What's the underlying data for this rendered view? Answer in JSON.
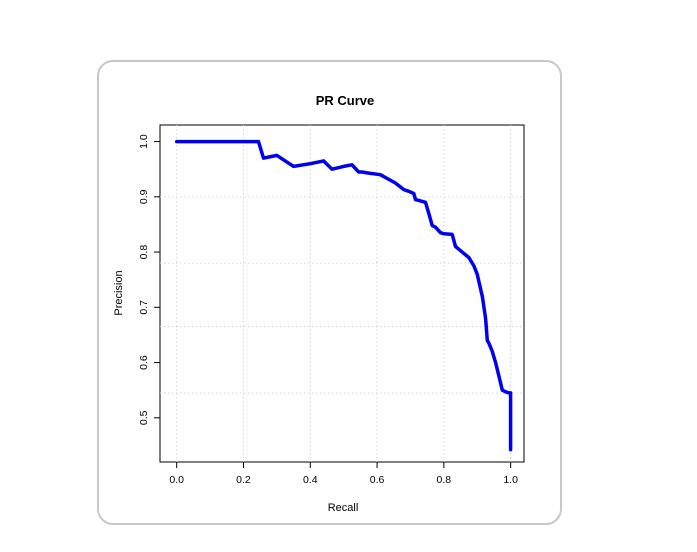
{
  "chart_data": {
    "type": "line",
    "title": "PR Curve",
    "xlabel": "Recall",
    "ylabel": "Precision",
    "xlim": [
      -0.05,
      1.04
    ],
    "ylim": [
      0.42,
      1.03
    ],
    "xticks": [
      0.0,
      0.2,
      0.4,
      0.6,
      0.8,
      1.0
    ],
    "xtick_labels": [
      "0.0",
      "0.2",
      "0.4",
      "0.6",
      "0.8",
      "1.0"
    ],
    "yticks": [
      0.5,
      0.6,
      0.7,
      0.8,
      0.9,
      1.0
    ],
    "ytick_labels": [
      "0.5",
      "0.6",
      "0.7",
      "0.8",
      "0.9",
      "1.0"
    ],
    "grid_x": [
      0.0,
      0.2,
      0.4,
      0.6,
      0.8,
      1.0
    ],
    "grid_y": [
      0.545,
      0.665,
      0.78,
      0.9
    ],
    "grid": true,
    "series": [
      {
        "color": "#0000ee",
        "x": [
          0.0,
          0.245,
          0.26,
          0.3,
          0.35,
          0.4,
          0.44,
          0.465,
          0.5,
          0.525,
          0.545,
          0.555,
          0.575,
          0.61,
          0.625,
          0.655,
          0.68,
          0.695,
          0.71,
          0.715,
          0.745,
          0.755,
          0.765,
          0.775,
          0.79,
          0.8,
          0.825,
          0.835,
          0.845,
          0.875,
          0.89,
          0.9,
          0.915,
          0.925,
          0.93,
          0.935,
          0.945,
          0.955,
          0.965,
          0.975,
          0.985,
          0.995,
          1.0,
          1.0
        ],
        "y": [
          1.0,
          1.0,
          0.97,
          0.975,
          0.955,
          0.96,
          0.965,
          0.95,
          0.955,
          0.958,
          0.945,
          0.945,
          0.943,
          0.94,
          0.935,
          0.925,
          0.913,
          0.91,
          0.906,
          0.895,
          0.89,
          0.87,
          0.848,
          0.845,
          0.835,
          0.833,
          0.832,
          0.81,
          0.805,
          0.79,
          0.775,
          0.76,
          0.72,
          0.68,
          0.64,
          0.635,
          0.62,
          0.6,
          0.575,
          0.55,
          0.547,
          0.545,
          0.545,
          0.442
        ]
      }
    ]
  }
}
